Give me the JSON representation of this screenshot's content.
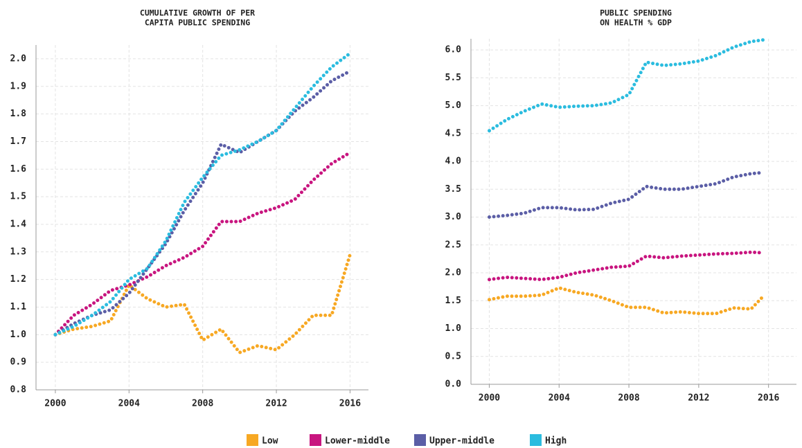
{
  "chart_data": [
    {
      "type": "line",
      "title": [
        "CUMULATIVE GROWTH OF PER",
        "CAPITA PUBLIC SPENDING"
      ],
      "x": [
        2000,
        2001,
        2002,
        2003,
        2004,
        2005,
        2006,
        2007,
        2008,
        2009,
        2010,
        2011,
        2012,
        2013,
        2014,
        2015,
        2016
      ],
      "series": [
        {
          "name": "Low",
          "color": "#f7a823",
          "values": [
            1.0,
            1.02,
            1.03,
            1.05,
            1.18,
            1.13,
            1.1,
            1.11,
            0.98,
            1.02,
            0.935,
            0.96,
            0.945,
            1.0,
            1.07,
            1.07,
            1.29
          ]
        },
        {
          "name": "Lower-middle",
          "color": "#c8157f",
          "values": [
            1.0,
            1.07,
            1.11,
            1.16,
            1.18,
            1.21,
            1.25,
            1.28,
            1.32,
            1.41,
            1.41,
            1.44,
            1.46,
            1.49,
            1.56,
            1.62,
            1.66
          ]
        },
        {
          "name": "Upper-middle",
          "color": "#5b5ea6",
          "values": [
            1.0,
            1.04,
            1.07,
            1.09,
            1.15,
            1.24,
            1.33,
            1.45,
            1.55,
            1.69,
            1.66,
            1.7,
            1.74,
            1.81,
            1.86,
            1.92,
            1.955
          ]
        },
        {
          "name": "High",
          "color": "#2bbcdf",
          "values": [
            1.0,
            1.03,
            1.07,
            1.12,
            1.2,
            1.24,
            1.34,
            1.48,
            1.57,
            1.65,
            1.67,
            1.7,
            1.74,
            1.82,
            1.9,
            1.97,
            2.02
          ]
        }
      ],
      "xlim": [
        1998.95,
        2017
      ],
      "xticks": [
        2000,
        2004,
        2008,
        2012,
        2016
      ],
      "ylim": [
        0.8,
        2.05
      ],
      "yticks": [
        0.8,
        0.9,
        {
          "value": 1,
          "label": "1.0"
        },
        1.1,
        1.2,
        1.3,
        1.4,
        1.5,
        1.6,
        1.7,
        1.8,
        1.9,
        {
          "value": 2,
          "label": "2.0"
        }
      ],
      "grid": true
    },
    {
      "type": "line",
      "title": [
        "PUBLIC SPENDING",
        "ON HEALTH % GDP"
      ],
      "x": [
        2000,
        2001,
        2002,
        2003,
        2004,
        2005,
        2006,
        2007,
        2008,
        2009,
        2010,
        2011,
        2012,
        2013,
        2014,
        2015,
        2015.7
      ],
      "series": [
        {
          "name": "Low",
          "color": "#f7a823",
          "values": [
            1.52,
            1.58,
            1.58,
            1.6,
            1.73,
            1.65,
            1.6,
            1.5,
            1.38,
            1.38,
            1.28,
            1.3,
            1.27,
            1.27,
            1.37,
            1.35,
            1.58
          ]
        },
        {
          "name": "Lower-middle",
          "color": "#c8157f",
          "values": [
            1.88,
            1.92,
            1.9,
            1.88,
            1.92,
            2.0,
            2.05,
            2.1,
            2.12,
            2.3,
            2.27,
            2.3,
            2.32,
            2.34,
            2.35,
            2.37,
            2.36
          ]
        },
        {
          "name": "Upper-middle",
          "color": "#5b5ea6",
          "values": [
            3.0,
            3.03,
            3.07,
            3.17,
            3.17,
            3.13,
            3.14,
            3.25,
            3.32,
            3.55,
            3.5,
            3.5,
            3.55,
            3.6,
            3.72,
            3.78,
            3.8
          ]
        },
        {
          "name": "High",
          "color": "#2bbcdf",
          "values": [
            4.55,
            4.75,
            4.9,
            5.03,
            4.97,
            4.99,
            5.0,
            5.05,
            5.2,
            5.78,
            5.72,
            5.75,
            5.8,
            5.9,
            6.05,
            6.15,
            6.18
          ]
        }
      ],
      "xlim": [
        1998.95,
        2017.6
      ],
      "xticks": [
        2000,
        2004,
        2008,
        2012,
        2016
      ],
      "ylim": [
        0,
        6.2
      ],
      "yticks": [
        {
          "value": 0,
          "label": "0.0"
        },
        0.5,
        {
          "value": 1,
          "label": "1.0"
        },
        1.5,
        {
          "value": 2,
          "label": "2.0"
        },
        2.5,
        {
          "value": 3,
          "label": "3.0"
        },
        3.5,
        {
          "value": 4,
          "label": "4.0"
        },
        4.5,
        {
          "value": 5,
          "label": "5.0"
        },
        5.5,
        {
          "value": 6,
          "label": "6.0"
        }
      ],
      "grid": true
    }
  ]
}
